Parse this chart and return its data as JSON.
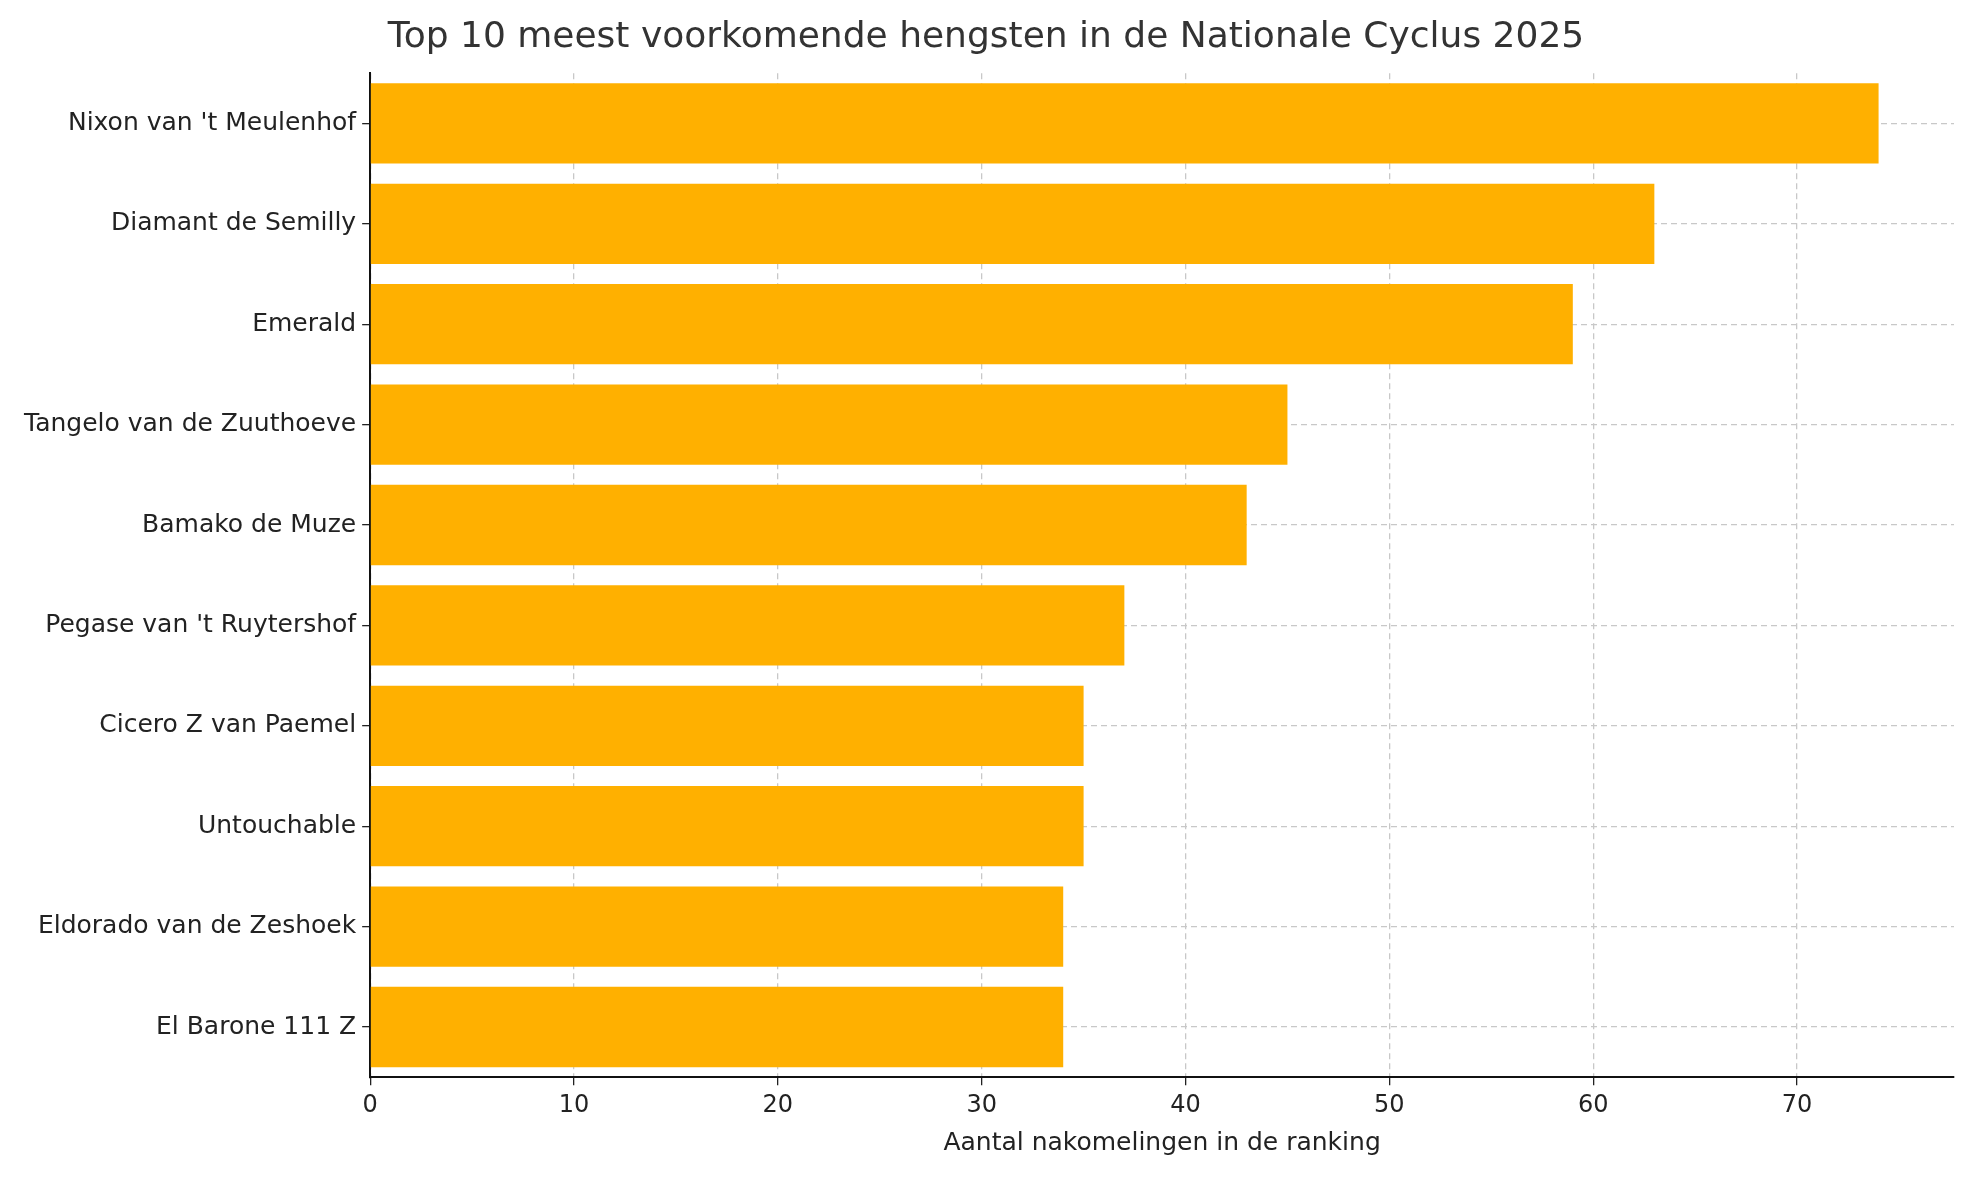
{
  "chart_data": {
    "type": "bar",
    "orientation": "horizontal",
    "title": "Top 10 meest voorkomende hengsten in de Nationale Cyclus 2025",
    "xlabel": "Aantal nakomelingen in de ranking",
    "categories": [
      "Nixon van 't Meulenhof",
      "Diamant de Semilly",
      "Emerald",
      "Tangelo van de Zuuthoeve",
      "Bamako de Muze",
      "Pegase van 't Ruytershof",
      "Cicero Z van Paemel",
      "Untouchable",
      "Eldorado van de Zeshoek",
      "El Barone 111 Z"
    ],
    "values": [
      74,
      63,
      59,
      45,
      43,
      37,
      35,
      35,
      34,
      34
    ],
    "color": "#ffb000",
    "xlim": [
      0,
      77.7
    ],
    "xticks": [
      0,
      10,
      20,
      30,
      40,
      50,
      60,
      70
    ],
    "grid": true,
    "line_style": "dashed"
  }
}
